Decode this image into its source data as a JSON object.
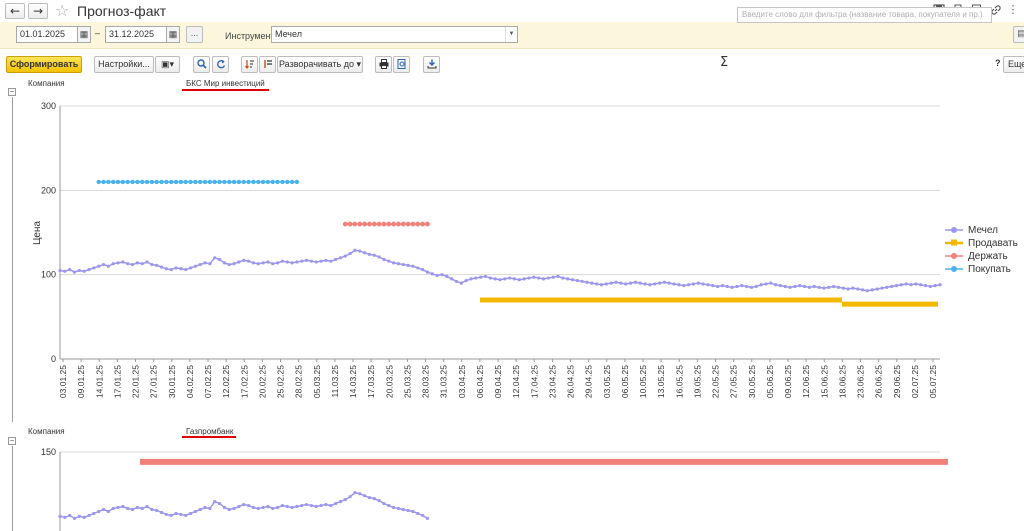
{
  "window": {
    "title": "Прогноз-факт",
    "nav_back": "←",
    "nav_forward": "→",
    "star": "☆",
    "icons": [
      "save-icon",
      "print-icon",
      "search-document-icon",
      "link-icon",
      "more-icon",
      "maximize-icon"
    ]
  },
  "filters": {
    "date_from": "01.01.2025",
    "separator": "–",
    "date_to": "31.12.2025",
    "dots": "...",
    "instrument_label": "Инструмент:",
    "instrument_value": "Мечел"
  },
  "toolbar": {
    "generate": "Сформировать",
    "settings": "Настройки...",
    "expand": "Разворачивать до",
    "search_placeholder": "Введите слово для фильтра (название товара, покупателя и пр.)",
    "sigma": "Σ",
    "help": "?",
    "more": "Еще"
  },
  "sections": [
    {
      "group_label": "Компания",
      "company": "БКС Мир инвестиций"
    },
    {
      "group_label": "Компания",
      "company": "Газпромбанк"
    }
  ],
  "colors": {
    "mechel": "#9b96ee",
    "sell": "#f5b800",
    "hold": "#f0807a",
    "buy": "#4ab4ea",
    "grid": "#d9d9d9"
  },
  "chart_data": [
    {
      "type": "line",
      "title": "БКС Мир инвестиций",
      "ylabel": "Цена",
      "xlabel": "",
      "ylim": [
        0,
        300
      ],
      "yticks": [
        0,
        100,
        200,
        300
      ],
      "x_ticks": [
        "03.01.25",
        "09.01.25",
        "14.01.25",
        "17.01.25",
        "22.01.25",
        "27.01.25",
        "30.01.25",
        "04.02.25",
        "07.02.25",
        "12.02.25",
        "17.02.25",
        "20.02.25",
        "25.02.25",
        "28.02.25",
        "05.03.25",
        "11.03.25",
        "14.03.25",
        "17.03.25",
        "20.03.25",
        "25.03.25",
        "28.03.25",
        "31.03.25",
        "03.04.25",
        "06.04.25",
        "09.04.25",
        "12.04.25",
        "17.04.25",
        "23.04.25",
        "26.04.25",
        "29.04.25",
        "03.05.25",
        "06.05.25",
        "10.05.25",
        "13.05.25",
        "16.05.25",
        "19.05.25",
        "22.05.25",
        "27.05.25",
        "30.05.25",
        "05.06.25",
        "09.06.25",
        "12.06.25",
        "15.06.25",
        "18.06.25",
        "23.06.25",
        "26.06.25",
        "29.06.25",
        "02.07.25",
        "05.07.25"
      ],
      "legend_position": "right",
      "series": [
        {
          "name": "Мечел",
          "values": [
            105,
            104,
            106,
            103,
            105,
            104,
            106,
            108,
            110,
            112,
            110,
            113,
            114,
            115,
            113,
            112,
            114,
            113,
            115,
            112,
            111,
            109,
            107,
            106,
            108,
            107,
            106,
            108,
            110,
            112,
            114,
            113,
            120,
            118,
            114,
            112,
            113,
            115,
            117,
            116,
            114,
            113,
            114,
            115,
            113,
            114,
            116,
            115,
            114,
            115,
            116,
            117,
            116,
            115,
            116,
            117,
            116,
            118,
            120,
            122,
            125,
            129,
            128,
            126,
            124,
            123,
            121,
            118,
            116,
            114,
            113,
            112,
            111,
            110,
            108,
            106,
            103,
            101,
            99,
            100,
            98,
            95,
            92,
            90,
            93,
            95,
            96,
            97,
            98,
            96,
            95,
            94,
            95,
            96,
            95,
            94,
            95,
            96,
            97,
            96,
            95,
            96,
            97,
            98,
            96,
            95,
            94,
            93,
            92,
            91,
            90,
            89,
            88,
            89,
            90,
            91,
            90,
            89,
            90,
            91,
            90,
            89,
            88,
            89,
            90,
            91,
            90,
            89,
            88,
            87,
            88,
            89,
            90,
            89,
            88,
            87,
            86,
            87,
            86,
            85,
            86,
            87,
            86,
            85,
            86,
            88,
            89,
            90,
            88,
            87,
            86,
            85,
            86,
            87,
            86,
            85,
            86,
            85,
            84,
            85,
            86,
            85,
            84,
            83,
            84,
            83,
            82,
            81,
            82,
            83,
            84,
            85,
            86,
            87,
            88,
            89,
            88,
            89,
            88,
            87,
            86,
            87,
            88
          ]
        },
        {
          "name": "Продавать",
          "value": 70,
          "value2": 65
        },
        {
          "name": "Держать",
          "value": 160
        },
        {
          "name": "Покупать",
          "value": 210
        }
      ]
    },
    {
      "type": "line",
      "title": "Газпромбанк",
      "ylim": [
        0,
        150
      ],
      "yticks": [
        150
      ],
      "series": [
        {
          "name": "Мечел"
        },
        {
          "name": "Держать",
          "value": 140
        }
      ]
    }
  ]
}
